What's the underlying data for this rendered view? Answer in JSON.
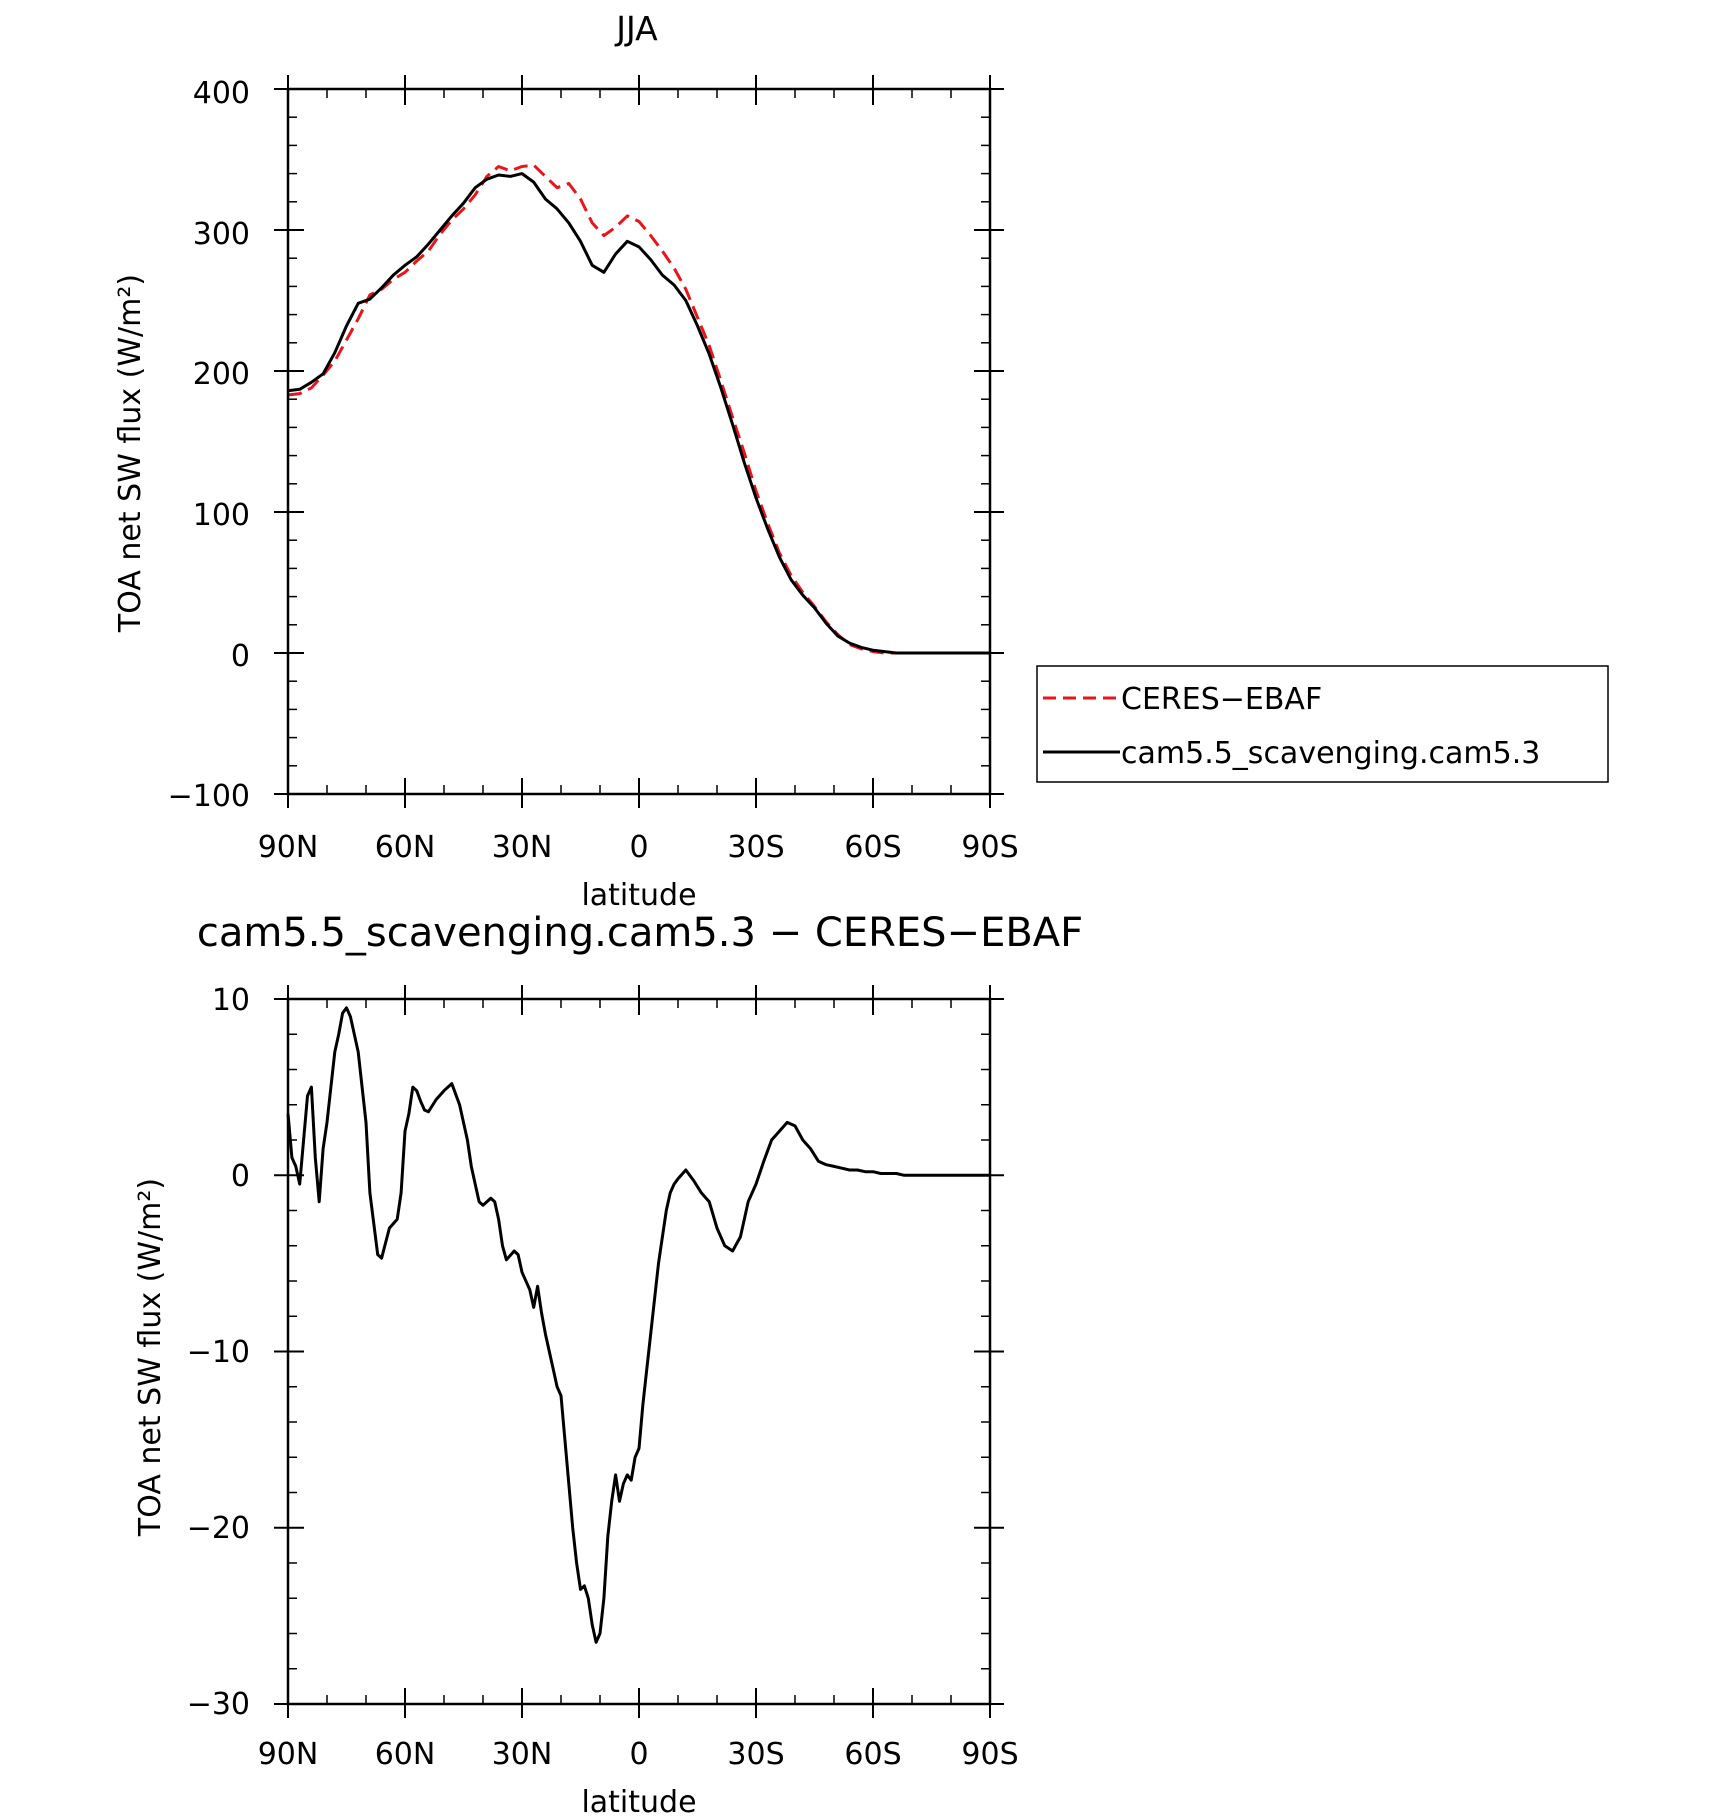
{
  "chart_data": [
    {
      "type": "line",
      "title": "JJA",
      "xlabel": "latitude",
      "ylabel": "TOA net SW flux (W/m²)",
      "xlim": [
        90,
        -90
      ],
      "ylim": [
        -100,
        400
      ],
      "xticks": [
        90,
        60,
        30,
        0,
        -30,
        -60,
        -90
      ],
      "xtick_labels": [
        "90N",
        "60N",
        "30N",
        "0",
        "30S",
        "60S",
        "90S"
      ],
      "yticks": [
        -100,
        0,
        100,
        200,
        300,
        400
      ],
      "ytick_labels": [
        "−100",
        "0",
        "100",
        "200",
        "300",
        "400"
      ],
      "legend_placement": "right",
      "series": [
        {
          "name": "CERES−EBAF",
          "color": "#e8161b",
          "style": "dashed",
          "x": [
            90,
            87,
            84,
            81,
            78,
            75,
            72,
            69,
            66,
            63,
            60,
            57,
            54,
            51,
            48,
            45,
            42,
            39,
            36,
            33,
            30,
            27,
            24,
            21,
            18,
            15,
            12,
            9,
            6,
            3,
            0,
            -3,
            -6,
            -9,
            -12,
            -15,
            -18,
            -21,
            -24,
            -27,
            -30,
            -33,
            -36,
            -39,
            -42,
            -45,
            -48,
            -51,
            -54,
            -57,
            -60,
            -63,
            -66,
            -69,
            -72,
            -75,
            -78,
            -81,
            -84,
            -87,
            -90
          ],
          "y": [
            183,
            184,
            188,
            197,
            207,
            222,
            237,
            254,
            258,
            265,
            270,
            278,
            285,
            297,
            307,
            315,
            325,
            338,
            345,
            342,
            345,
            346,
            338,
            330,
            333,
            322,
            305,
            296,
            302,
            310,
            306,
            296,
            285,
            273,
            258,
            238,
            218,
            193,
            167,
            142,
            115,
            92,
            71,
            55,
            43,
            33,
            22,
            13,
            6,
            3,
            1,
            0,
            0,
            0,
            0,
            0,
            0,
            0,
            0,
            0,
            0
          ]
        },
        {
          "name": "cam5.5_scavenging.cam5.3",
          "color": "#000000",
          "style": "solid",
          "x": [
            90,
            87,
            84,
            81,
            78,
            75,
            72,
            69,
            66,
            63,
            60,
            57,
            54,
            51,
            48,
            45,
            42,
            39,
            36,
            33,
            30,
            27,
            24,
            21,
            18,
            15,
            12,
            9,
            6,
            3,
            0,
            -3,
            -6,
            -9,
            -12,
            -15,
            -18,
            -21,
            -24,
            -27,
            -30,
            -33,
            -36,
            -39,
            -42,
            -45,
            -48,
            -51,
            -54,
            -57,
            -60,
            -63,
            -66,
            -69,
            -72,
            -75,
            -78,
            -81,
            -84,
            -87,
            -90
          ],
          "y": [
            186,
            187,
            192,
            198,
            213,
            232,
            248,
            251,
            259,
            268,
            275,
            281,
            290,
            300,
            310,
            319,
            330,
            336,
            339,
            338,
            340,
            334,
            322,
            315,
            305,
            292,
            275,
            270,
            283,
            292,
            288,
            279,
            268,
            261,
            250,
            232,
            212,
            188,
            162,
            135,
            110,
            88,
            68,
            52,
            41,
            32,
            21,
            12,
            7,
            4,
            2,
            1,
            0,
            0,
            0,
            0,
            0,
            0,
            0,
            0,
            0
          ]
        }
      ]
    },
    {
      "type": "line",
      "title": "cam5.5_scavenging.cam5.3 − CERES−EBAF",
      "xlabel": "latitude",
      "ylabel": "TOA net SW flux (W/m²)",
      "xlim": [
        90,
        -90
      ],
      "ylim": [
        -30,
        10
      ],
      "xticks": [
        90,
        60,
        30,
        0,
        -30,
        -60,
        -90
      ],
      "xtick_labels": [
        "90N",
        "60N",
        "30N",
        "0",
        "30S",
        "60S",
        "90S"
      ],
      "yticks": [
        -30,
        -20,
        -10,
        0,
        10
      ],
      "ytick_labels": [
        "−30",
        "−20",
        "−10",
        "0",
        "10"
      ],
      "series": [
        {
          "color": "#000000",
          "style": "solid",
          "x": [
            90,
            89,
            88,
            87,
            86,
            85,
            84,
            83,
            82,
            81,
            80,
            79,
            78,
            77,
            76,
            75,
            74,
            72,
            70,
            69,
            67,
            66,
            64,
            62,
            61,
            60,
            59,
            58,
            57,
            56,
            55,
            54,
            52,
            50,
            48,
            46,
            45,
            44,
            43,
            42,
            41,
            40,
            39,
            38,
            37,
            36,
            35,
            34,
            32,
            31,
            30,
            28,
            27,
            26,
            25,
            24,
            23,
            22,
            21,
            20,
            19,
            18,
            17,
            16,
            15,
            14,
            13,
            12,
            11,
            10,
            9,
            8,
            7,
            6,
            5,
            4,
            3,
            2,
            1,
            0,
            -1,
            -2,
            -3,
            -4,
            -5,
            -6,
            -7,
            -8,
            -9,
            -10,
            -12,
            -14,
            -16,
            -18,
            -20,
            -22,
            -24,
            -26,
            -28,
            -30,
            -32,
            -34,
            -36,
            -38,
            -40,
            -42,
            -44,
            -46,
            -48,
            -50,
            -52,
            -54,
            -56,
            -58,
            -60,
            -62,
            -64,
            -66,
            -68,
            -70,
            -72,
            -74,
            -76,
            -78,
            -80,
            -82,
            -84,
            -86,
            -88,
            -90
          ],
          "y": [
            3.5,
            1,
            0.5,
            -0.5,
            2,
            4.5,
            5,
            1,
            -1.5,
            1.5,
            3,
            5,
            7,
            8,
            9.2,
            9.5,
            9,
            7,
            3,
            -1,
            -4.5,
            -4.7,
            -3,
            -2.5,
            -1,
            2.5,
            3.5,
            5,
            4.8,
            4.2,
            3.7,
            3.6,
            4.3,
            4.8,
            5.2,
            4,
            3,
            2,
            0.5,
            -0.5,
            -1.5,
            -1.7,
            -1.5,
            -1.3,
            -1.5,
            -2.5,
            -4,
            -4.8,
            -4.3,
            -4.5,
            -5.5,
            -6.5,
            -7.5,
            -6.3,
            -7.8,
            -9,
            -10,
            -11,
            -12,
            -12.5,
            -15,
            -17.5,
            -20,
            -22,
            -23.5,
            -23.3,
            -24,
            -25.5,
            -26.5,
            -26,
            -24,
            -20.5,
            -18.5,
            -17,
            -18.5,
            -17.5,
            -17,
            -17.3,
            -16,
            -15.5,
            -13,
            -11,
            -9,
            -7,
            -5,
            -3.5,
            -2,
            -1,
            -0.5,
            -0.2,
            0.3,
            -0.3,
            -1,
            -1.5,
            -3,
            -4,
            -4.3,
            -3.5,
            -1.5,
            -0.5,
            0.8,
            2,
            2.5,
            3,
            2.8,
            2,
            1.5,
            0.8,
            0.6,
            0.5,
            0.4,
            0.3,
            0.3,
            0.2,
            0.2,
            0.1,
            0.1,
            0.1,
            0,
            0,
            0,
            0,
            0,
            0,
            0,
            0,
            0,
            0,
            0,
            0
          ]
        }
      ]
    }
  ]
}
